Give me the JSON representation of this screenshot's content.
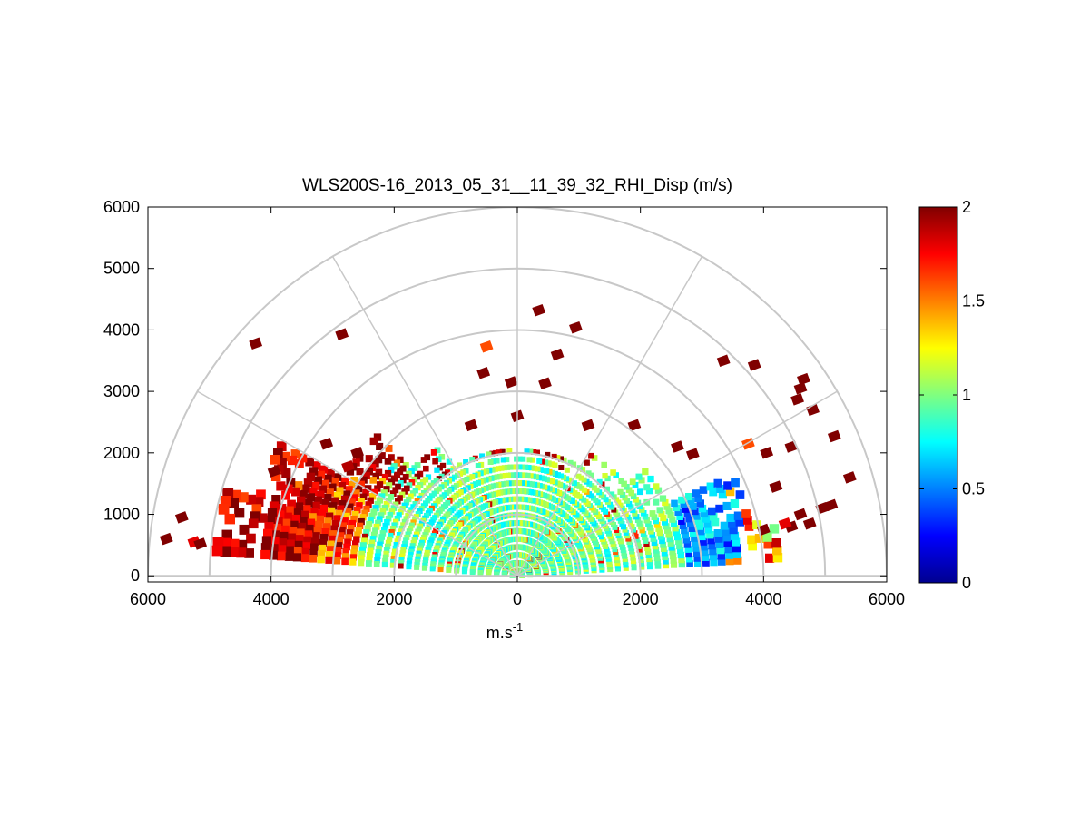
{
  "chart_data": {
    "type": "heatmap",
    "subtype": "polar-rhi-sector",
    "title": "WLS200S-16_2013_05_31__11_39_32_RHI_Disp (m/s)",
    "xlabel_base": "m.s",
    "xlabel_sup": "-1",
    "xlim": [
      -6000,
      6000
    ],
    "ylim": [
      -100,
      6000
    ],
    "x_ticks": [
      -6000,
      -4000,
      -2000,
      0,
      2000,
      4000,
      6000
    ],
    "x_tick_labels": [
      "6000",
      "4000",
      "2000",
      "0",
      "2000",
      "4000",
      "6000"
    ],
    "y_ticks": [
      0,
      1000,
      2000,
      3000,
      4000,
      5000,
      6000
    ],
    "y_tick_labels": [
      "0",
      "1000",
      "2000",
      "3000",
      "4000",
      "5000",
      "6000"
    ],
    "polar_rings": [
      1000,
      2000,
      3000,
      4000,
      5000,
      6000
    ],
    "polar_spokes_deg": [
      30,
      60,
      90,
      120,
      150
    ],
    "colorbar": {
      "min": 0,
      "max": 2,
      "ticks": [
        0,
        0.5,
        1,
        1.5,
        2
      ],
      "tick_labels": [
        "0",
        "0.5",
        "1",
        "1.5",
        "2"
      ],
      "colormap": "jet"
    },
    "value_field_description": "Dense core of values ~0.8-1.2 m/s within ~2500 m range and elevations up to ~40 deg; higher values (1.5-2) toward the range edge on the left, low values (0.2-0.6) near 3500-4500 m at low elevation on the right; sparse saturated (2) scatter at larger ranges",
    "scatter_points": [
      {
        "x": -5700,
        "y": 600,
        "v": 2
      },
      {
        "x": -5450,
        "y": 950,
        "v": 2
      },
      {
        "x": -5250,
        "y": 550,
        "v": 1.8
      },
      {
        "x": -5150,
        "y": 520,
        "v": 2
      },
      {
        "x": -4250,
        "y": 3780,
        "v": 2
      },
      {
        "x": -2850,
        "y": 3930,
        "v": 2
      },
      {
        "x": -3950,
        "y": 1700,
        "v": 2
      },
      {
        "x": -3100,
        "y": 2150,
        "v": 2
      },
      {
        "x": -2600,
        "y": 2000,
        "v": 2
      },
      {
        "x": -2750,
        "y": 1780,
        "v": 1.9
      },
      {
        "x": -500,
        "y": 3730,
        "v": 1.6
      },
      {
        "x": -550,
        "y": 3300,
        "v": 2
      },
      {
        "x": -100,
        "y": 3150,
        "v": 2
      },
      {
        "x": 350,
        "y": 4320,
        "v": 2
      },
      {
        "x": 950,
        "y": 4040,
        "v": 2
      },
      {
        "x": 650,
        "y": 3600,
        "v": 2
      },
      {
        "x": 450,
        "y": 3130,
        "v": 2
      },
      {
        "x": -750,
        "y": 2450,
        "v": 2
      },
      {
        "x": 0,
        "y": 2600,
        "v": 2
      },
      {
        "x": 1150,
        "y": 2450,
        "v": 2
      },
      {
        "x": 1900,
        "y": 2450,
        "v": 2
      },
      {
        "x": 3350,
        "y": 3500,
        "v": 2
      },
      {
        "x": 3850,
        "y": 3430,
        "v": 2
      },
      {
        "x": 4600,
        "y": 3050,
        "v": 2
      },
      {
        "x": 4650,
        "y": 3200,
        "v": 2
      },
      {
        "x": 4550,
        "y": 2870,
        "v": 2
      },
      {
        "x": 4800,
        "y": 2700,
        "v": 2
      },
      {
        "x": 5150,
        "y": 2270,
        "v": 2
      },
      {
        "x": 4450,
        "y": 2100,
        "v": 2
      },
      {
        "x": 4050,
        "y": 2000,
        "v": 2
      },
      {
        "x": 3750,
        "y": 2150,
        "v": 1.6
      },
      {
        "x": 2850,
        "y": 1980,
        "v": 2
      },
      {
        "x": 2600,
        "y": 2100,
        "v": 2
      },
      {
        "x": 5400,
        "y": 1600,
        "v": 2
      },
      {
        "x": 5100,
        "y": 1150,
        "v": 2
      },
      {
        "x": 4950,
        "y": 1100,
        "v": 2
      },
      {
        "x": 4750,
        "y": 850,
        "v": 2
      },
      {
        "x": 4600,
        "y": 1000,
        "v": 2
      },
      {
        "x": 4200,
        "y": 1450,
        "v": 2
      },
      {
        "x": 4450,
        "y": 800,
        "v": 2
      },
      {
        "x": 4350,
        "y": 850,
        "v": 1.8
      },
      {
        "x": 4000,
        "y": 750,
        "v": 2
      }
    ]
  }
}
